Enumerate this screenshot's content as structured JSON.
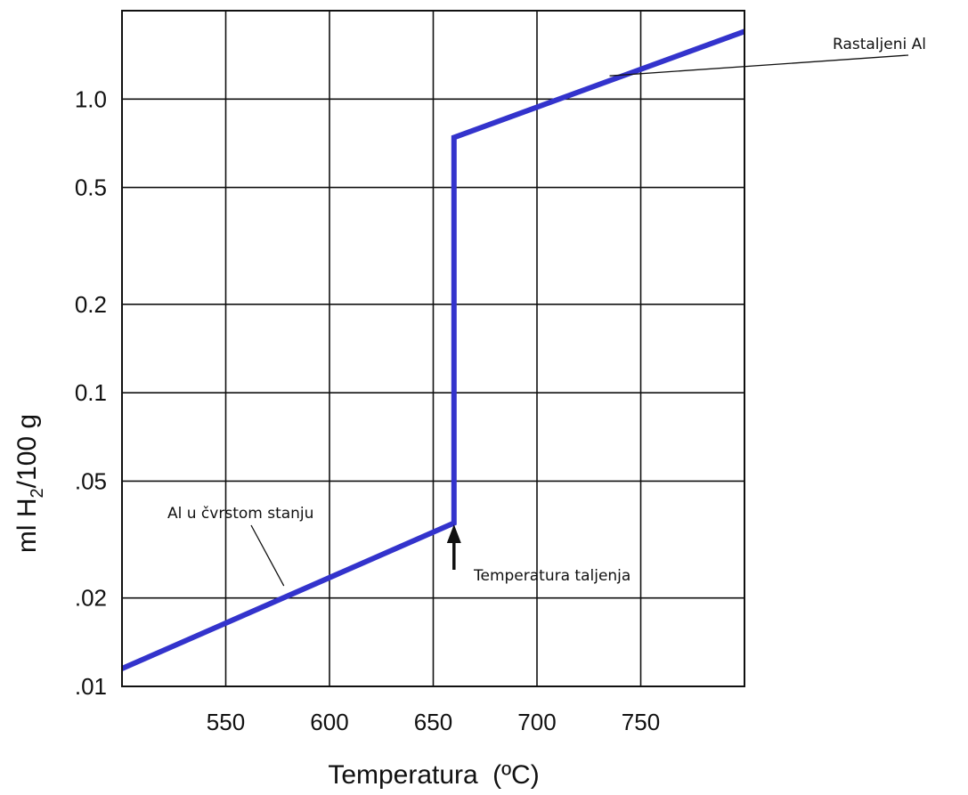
{
  "chart_data": {
    "type": "line",
    "title": "",
    "x_axis": {
      "label_main": "Temperatura",
      "label_unit": "(ºC)",
      "range": [
        500,
        800
      ],
      "ticks": [
        550,
        600,
        650,
        700,
        750
      ],
      "tick_labels": [
        "550",
        "600",
        "650",
        "700",
        "750"
      ]
    },
    "y_axis": {
      "label_prefix": "ml H",
      "label_sub": "2",
      "label_suffix": "/100 g",
      "scale": "log",
      "range": [
        0.01,
        2.0
      ],
      "ticks": [
        0.01,
        0.02,
        0.05,
        0.1,
        0.2,
        0.5,
        1.0
      ],
      "tick_labels": [
        ".01",
        ".02",
        ".05",
        "0.1",
        "0.2",
        "0.5",
        "1.0"
      ]
    },
    "grid": true,
    "series": [
      {
        "color": "#3333cc",
        "points": [
          {
            "x": 500,
            "y": 0.0115
          },
          {
            "x": 660,
            "y": 0.036
          },
          {
            "x": 660,
            "y": 0.74
          },
          {
            "x": 800,
            "y": 1.7
          }
        ]
      }
    ],
    "annotations": [
      {
        "text": "Rastaljeni Al",
        "target_x": 735,
        "target_y": 1.2
      },
      {
        "text": "Al u čvrstom stanju",
        "target_x": 578,
        "target_y": 0.022
      },
      {
        "text": "Temperatura taljenja",
        "arrow_x": 660
      }
    ]
  }
}
